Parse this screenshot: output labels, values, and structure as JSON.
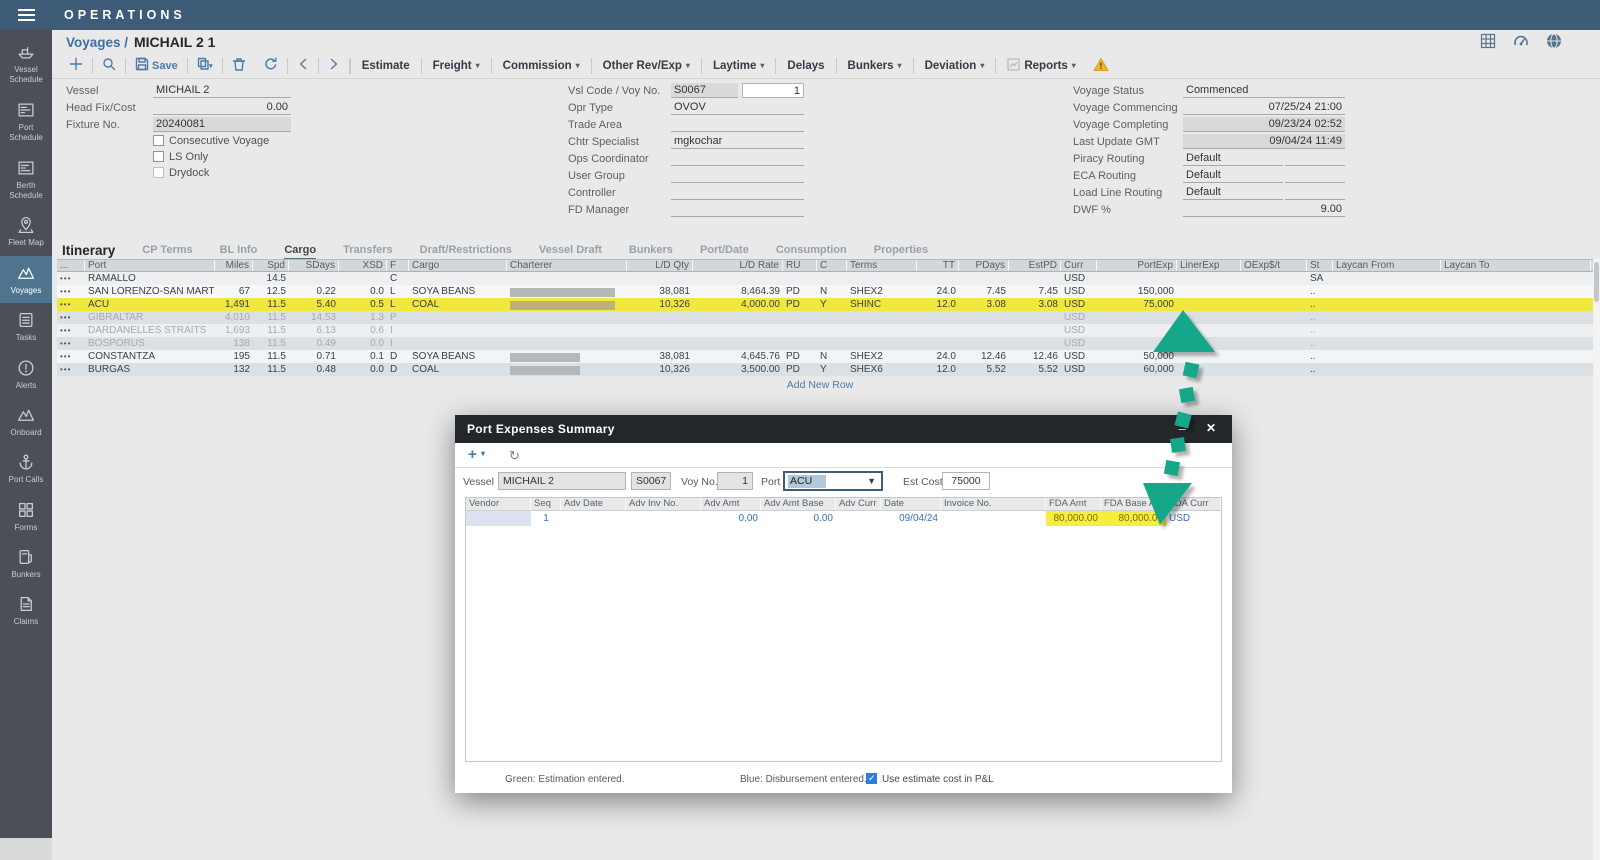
{
  "topbar": {
    "title": "OPERATIONS"
  },
  "breadcrumb": {
    "section": "Voyages /",
    "title": "MICHAIL 2 1"
  },
  "toolbar": {
    "save_label": "Save",
    "buttons": [
      {
        "label": "Estimate",
        "dropdown": false
      },
      {
        "label": "Freight",
        "dropdown": true
      },
      {
        "label": "Commission",
        "dropdown": true
      },
      {
        "label": "Other Rev/Exp",
        "dropdown": true
      },
      {
        "label": "Laytime",
        "dropdown": true
      },
      {
        "label": "Delays",
        "dropdown": false
      },
      {
        "label": "Bunkers",
        "dropdown": true
      },
      {
        "label": "Deviation",
        "dropdown": true
      },
      {
        "label": "Reports",
        "dropdown": true,
        "chart_icon": true
      }
    ]
  },
  "sidebar": {
    "items": [
      {
        "id": "vessel-schedule",
        "label": "Vessel\nSchedule",
        "active": false
      },
      {
        "id": "port-schedule",
        "label": "Port\nSchedule",
        "active": false
      },
      {
        "id": "berth-schedule",
        "label": "Berth\nSchedule",
        "active": false
      },
      {
        "id": "fleet-map",
        "label": "Fleet Map",
        "active": false
      },
      {
        "id": "voyages",
        "label": "Voyages",
        "active": true
      },
      {
        "id": "tasks",
        "label": "Tasks",
        "active": false
      },
      {
        "id": "alerts",
        "label": "Alerts",
        "active": false
      },
      {
        "id": "onboard",
        "label": "Onboard",
        "active": false
      },
      {
        "id": "port-calls",
        "label": "Port Calls",
        "active": false
      },
      {
        "id": "forms",
        "label": "Forms",
        "active": false
      },
      {
        "id": "bunkers",
        "label": "Bunkers",
        "active": false
      },
      {
        "id": "claims",
        "label": "Claims",
        "active": false
      }
    ]
  },
  "form": {
    "left_fields": [
      {
        "label": "Vessel",
        "value": "MICHAIL 2",
        "align": "left",
        "readonly": false
      },
      {
        "label": "Head Fix/Cost",
        "value": "0.00",
        "align": "right",
        "readonly": false
      },
      {
        "label": "Fixture No.",
        "value": "20240081",
        "align": "left",
        "readonly": true
      }
    ],
    "checkboxes": [
      {
        "label": "Consecutive Voyage",
        "checked": false,
        "disabled": false
      },
      {
        "label": "LS Only",
        "checked": false,
        "disabled": false
      },
      {
        "label": "Drydock",
        "checked": false,
        "disabled": true
      }
    ],
    "mid_fields": [
      {
        "label": "Vsl Code / Voy No.",
        "value": "S0067",
        "value2": "1",
        "readonly": true
      },
      {
        "label": "Opr Type",
        "value": "OVOV"
      },
      {
        "label": "Trade Area",
        "value": ""
      },
      {
        "label": "Chtr Specialist",
        "value": "mgkochar"
      },
      {
        "label": "Ops Coordinator",
        "value": ""
      },
      {
        "label": "User Group",
        "value": ""
      },
      {
        "label": "Controller",
        "value": ""
      },
      {
        "label": "FD Manager",
        "value": ""
      }
    ],
    "right_fields": [
      {
        "label": "Voyage Status",
        "value": "Commenced",
        "align": "left",
        "readonly": false,
        "dual": false
      },
      {
        "label": "Voyage Commencing",
        "value": "07/25/24 21:00",
        "align": "right",
        "readonly": false,
        "dual": false
      },
      {
        "label": "Voyage Completing",
        "value": "09/23/24 02:52",
        "align": "right",
        "readonly": true,
        "dual": false
      },
      {
        "label": "Last Update GMT",
        "value": "09/04/24 11:49",
        "align": "right",
        "readonly": true,
        "dual": false
      },
      {
        "label": "Piracy Routing",
        "value": "Default",
        "align": "left",
        "readonly": false,
        "dual": true
      },
      {
        "label": "ECA Routing",
        "value": "Default",
        "align": "left",
        "readonly": false,
        "dual": true
      },
      {
        "label": "Load Line Routing",
        "value": "Default",
        "align": "left",
        "readonly": false,
        "dual": true
      },
      {
        "label": "DWF %",
        "value": "9.00",
        "align": "right",
        "readonly": false,
        "dual": false
      }
    ]
  },
  "tabs": {
    "section": "Itinerary",
    "items": [
      "CP Terms",
      "BL Info",
      "Cargo",
      "Transfers",
      "Draft/Restrictions",
      "Vessel Draft",
      "Bunkers",
      "Port/Date",
      "Consumption",
      "Properties"
    ],
    "active": "Cargo"
  },
  "itinerary": {
    "columns": [
      "...",
      "Port",
      "Miles",
      "Spd",
      "SDays",
      "XSD",
      "F",
      "Cargo",
      "Charterer",
      "L/D Qty",
      "L/D Rate",
      "RU",
      "C",
      "Terms",
      "TT",
      "PDays",
      "EstPD",
      "Curr",
      "PortExp",
      "LinerExp",
      "OExp$/t",
      "St",
      "Laycan From",
      "Laycan To"
    ],
    "add_row_label": "Add New Row",
    "rows": [
      {
        "port": "RAMALLO",
        "miles": "",
        "spd": "14.5",
        "sdays": "",
        "xsd": "",
        "f": "C",
        "cargo": "",
        "redacted": false,
        "redact_w": 0,
        "ldqty": "",
        "ldrate": "",
        "ru": "",
        "c": "",
        "terms": "",
        "tt": "",
        "pdays": "",
        "estpd": "",
        "curr": "USD",
        "portexp": "",
        "linerexp": "",
        "oexp": "",
        "st": "SA",
        "laycan_from": "",
        "laycan_to": "",
        "highlight": false,
        "dim": false
      },
      {
        "port": "SAN LORENZO-SAN MARTIN",
        "miles": "67",
        "spd": "12.5",
        "sdays": "0.22",
        "xsd": "0.0",
        "f": "L",
        "cargo": "SOYA BEANS",
        "redacted": true,
        "redact_w": 105,
        "ldqty": "38,081",
        "ldrate": "8,464.39",
        "ru": "PD",
        "c": "N",
        "terms": "SHEX2",
        "tt": "24.0",
        "pdays": "7.45",
        "estpd": "7.45",
        "curr": "USD",
        "portexp": "150,000",
        "linerexp": "",
        "oexp": "",
        "st": "..",
        "laycan_from": "",
        "laycan_to": "",
        "highlight": false,
        "dim": false
      },
      {
        "port": "ACU",
        "miles": "1,491",
        "spd": "11.5",
        "sdays": "5.40",
        "xsd": "0.5",
        "f": "L",
        "cargo": "COAL",
        "redacted": true,
        "redact_w": 105,
        "ldqty": "10,326",
        "ldrate": "4,000.00",
        "ru": "PD",
        "c": "Y",
        "terms": "SHINC",
        "tt": "12.0",
        "pdays": "3.08",
        "estpd": "3.08",
        "curr": "USD",
        "portexp": "75,000",
        "linerexp": "",
        "oexp": "",
        "st": "..",
        "laycan_from": "",
        "laycan_to": "",
        "highlight": true,
        "dim": false
      },
      {
        "port": "GIBRALTAR",
        "miles": "4,010",
        "spd": "11.5",
        "sdays": "14.53",
        "xsd": "1.3",
        "f": "P",
        "cargo": "",
        "redacted": false,
        "redact_w": 0,
        "ldqty": "",
        "ldrate": "",
        "ru": "",
        "c": "",
        "terms": "",
        "tt": "",
        "pdays": "",
        "estpd": "",
        "curr": "USD",
        "portexp": "",
        "linerexp": "",
        "oexp": "",
        "st": "..",
        "laycan_from": "",
        "laycan_to": "",
        "highlight": false,
        "dim": true
      },
      {
        "port": "DARDANELLES STRAITS",
        "miles": "1,693",
        "spd": "11.5",
        "sdays": "6.13",
        "xsd": "0.6",
        "f": "I",
        "cargo": "",
        "redacted": false,
        "redact_w": 0,
        "ldqty": "",
        "ldrate": "",
        "ru": "",
        "c": "",
        "terms": "",
        "tt": "",
        "pdays": "",
        "estpd": "",
        "curr": "USD",
        "portexp": "",
        "linerexp": "",
        "oexp": "",
        "st": "..",
        "laycan_from": "",
        "laycan_to": "",
        "highlight": false,
        "dim": true
      },
      {
        "port": "BOSPORUS",
        "miles": "138",
        "spd": "11.5",
        "sdays": "0.49",
        "xsd": "0.0",
        "f": "I",
        "cargo": "",
        "redacted": false,
        "redact_w": 0,
        "ldqty": "",
        "ldrate": "",
        "ru": "",
        "c": "",
        "terms": "",
        "tt": "",
        "pdays": "",
        "estpd": "",
        "curr": "USD",
        "portexp": "",
        "linerexp": "",
        "oexp": "",
        "st": "..",
        "laycan_from": "",
        "laycan_to": "",
        "highlight": false,
        "dim": true
      },
      {
        "port": "CONSTANTZA",
        "miles": "195",
        "spd": "11.5",
        "sdays": "0.71",
        "xsd": "0.1",
        "f": "D",
        "cargo": "SOYA BEANS",
        "redacted": true,
        "redact_w": 70,
        "ldqty": "38,081",
        "ldrate": "4,645.76",
        "ru": "PD",
        "c": "N",
        "terms": "SHEX2",
        "tt": "24.0",
        "pdays": "12.46",
        "estpd": "12.46",
        "curr": "USD",
        "portexp": "50,000",
        "linerexp": "",
        "oexp": "",
        "st": "..",
        "laycan_from": "",
        "laycan_to": "",
        "highlight": false,
        "dim": false
      },
      {
        "port": "BURGAS",
        "miles": "132",
        "spd": "11.5",
        "sdays": "0.48",
        "xsd": "0.0",
        "f": "D",
        "cargo": "COAL",
        "redacted": true,
        "redact_w": 70,
        "ldqty": "10,326",
        "ldrate": "3,500.00",
        "ru": "PD",
        "c": "Y",
        "terms": "SHEX6",
        "tt": "12.0",
        "pdays": "5.52",
        "estpd": "5.52",
        "curr": "USD",
        "portexp": "60,000",
        "linerexp": "",
        "oexp": "",
        "st": "..",
        "laycan_from": "",
        "laycan_to": "",
        "highlight": false,
        "dim": false
      }
    ]
  },
  "modal": {
    "title": "Port Expenses Summary",
    "minimize_glyph": "–",
    "close_glyph": "✕",
    "fields": {
      "vessel_label": "Vessel",
      "vessel": "MICHAIL 2",
      "vsl_code": "S0067",
      "voyno_label": "Voy No.",
      "voyno": "1",
      "port_label": "Port",
      "port": "ACU",
      "estcost_label": "Est Cost",
      "estcost": "75000"
    },
    "columns": [
      "Vendor",
      "Seq",
      "Adv Date",
      "Adv Inv No.",
      "Adv Amt",
      "Adv Amt Base",
      "Adv Curr",
      "Date",
      "Invoice No.",
      "FDA Amt",
      "FDA Base Amt",
      "FDA Curr"
    ],
    "row": {
      "vendor": "",
      "seq": "1",
      "adv_date": "",
      "adv_inv_no": "",
      "adv_amt": "0.00",
      "adv_amt_base": "0.00",
      "adv_curr": "",
      "date": "09/04/24",
      "invoice_no": "",
      "fda_amt": "80,000.00",
      "fda_base_amt": "80,000.00",
      "fda_curr": "USD"
    },
    "legend_green": "Green: Estimation entered.",
    "legend_blue": "Blue: Disbursement entered.",
    "checkbox_label": "Use estimate cost in P&L",
    "checkbox_checked": true
  },
  "colors": {
    "topbar": "#3e5b77",
    "sidebar": "#4a5056",
    "sidebar_active": "#4e7490",
    "accent_blue": "#4b7ba9",
    "highlight_yellow": "#f0e83c",
    "fda_yellow": "#f6ed3c",
    "entry_blue": "#3a6fb0",
    "arrow_green": "#17a68a",
    "modal_header": "#23272c",
    "warning_yellow": "#f0b429"
  }
}
